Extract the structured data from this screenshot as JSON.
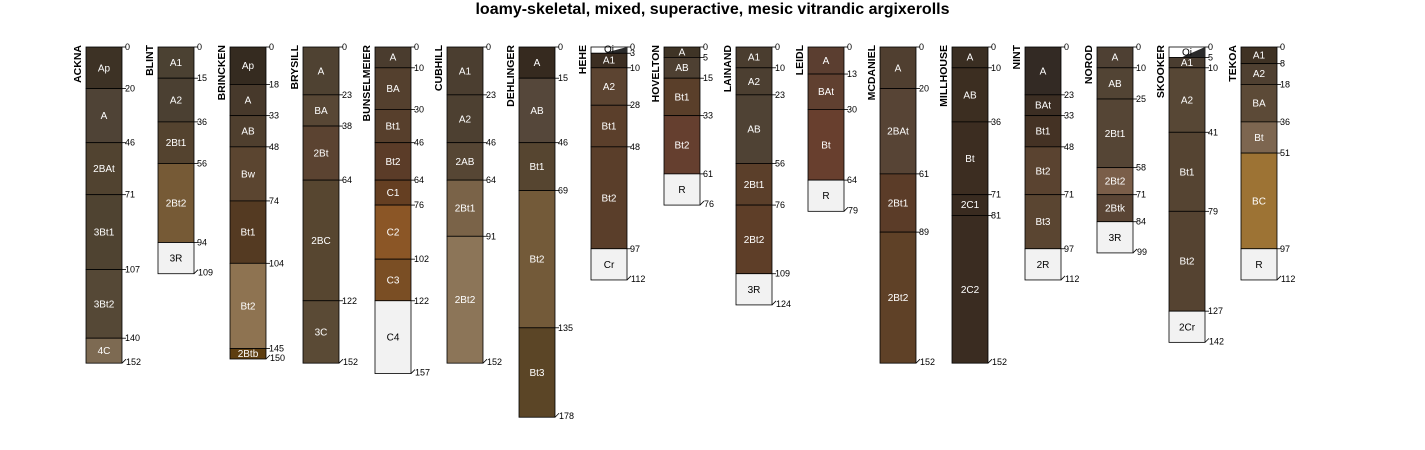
{
  "title": "loamy-skeletal, mixed, superactive, mesic vitrandic argixerolls",
  "chart_data": {
    "type": "soil-profile-sketch",
    "depth_unit": "cm",
    "depth_max": 178,
    "profiles": [
      {
        "name": "ACKNA",
        "horizons": [
          {
            "name": "Ap",
            "top": 0,
            "bottom": 20,
            "color": "#3D3225"
          },
          {
            "name": "A",
            "top": 20,
            "bottom": 46,
            "color": "#4F4336"
          },
          {
            "name": "2BAt",
            "top": 46,
            "bottom": 71,
            "color": "#514330"
          },
          {
            "name": "3Bt1",
            "top": 71,
            "bottom": 107,
            "color": "#4F4331"
          },
          {
            "name": "3Bt2",
            "top": 107,
            "bottom": 140,
            "color": "#554836"
          },
          {
            "name": "4C",
            "top": 140,
            "bottom": 152,
            "color": "#7D6A52"
          }
        ]
      },
      {
        "name": "BLINT",
        "horizons": [
          {
            "name": "A1",
            "top": 0,
            "bottom": 15,
            "color": "#4B4132"
          },
          {
            "name": "A2",
            "top": 15,
            "bottom": 36,
            "color": "#4B4032"
          },
          {
            "name": "2Bt1",
            "top": 36,
            "bottom": 56,
            "color": "#54432F"
          },
          {
            "name": "2Bt2",
            "top": 56,
            "bottom": 94,
            "color": "#765A36"
          },
          {
            "name": "3R",
            "top": 94,
            "bottom": 109,
            "color": "#F2F2F2"
          }
        ]
      },
      {
        "name": "BRINCKEN",
        "horizons": [
          {
            "name": "Ap",
            "top": 0,
            "bottom": 18,
            "color": "#352B20"
          },
          {
            "name": "A",
            "top": 18,
            "bottom": 33,
            "color": "#47392B"
          },
          {
            "name": "AB",
            "top": 33,
            "bottom": 48,
            "color": "#4F3F2E"
          },
          {
            "name": "Bw",
            "top": 48,
            "bottom": 74,
            "color": "#5B4530"
          },
          {
            "name": "Bt1",
            "top": 74,
            "bottom": 104,
            "color": "#543A22"
          },
          {
            "name": "Bt2",
            "top": 104,
            "bottom": 145,
            "color": "#8E7351"
          },
          {
            "name": "2Btb",
            "top": 145,
            "bottom": 150,
            "color": "#5E3E10"
          }
        ]
      },
      {
        "name": "BRYSILL",
        "horizons": [
          {
            "name": "A",
            "top": 0,
            "bottom": 23,
            "color": "#4F4232"
          },
          {
            "name": "BA",
            "top": 23,
            "bottom": 38,
            "color": "#584735"
          },
          {
            "name": "2Bt",
            "top": 38,
            "bottom": 64,
            "color": "#5B4331"
          },
          {
            "name": "2BC",
            "top": 64,
            "bottom": 122,
            "color": "#574630"
          },
          {
            "name": "3C",
            "top": 122,
            "bottom": 152,
            "color": "#5A4A35"
          }
        ]
      },
      {
        "name": "BUNSELMEIER",
        "horizons": [
          {
            "name": "A",
            "top": 0,
            "bottom": 10,
            "color": "#4A3C2E"
          },
          {
            "name": "BA",
            "top": 10,
            "bottom": 30,
            "color": "#54402E"
          },
          {
            "name": "Bt1",
            "top": 30,
            "bottom": 46,
            "color": "#573F2C"
          },
          {
            "name": "Bt2",
            "top": 46,
            "bottom": 64,
            "color": "#5B3C28"
          },
          {
            "name": "C1",
            "top": 64,
            "bottom": 76,
            "color": "#653F22"
          },
          {
            "name": "C2",
            "top": 76,
            "bottom": 102,
            "color": "#8B5626"
          },
          {
            "name": "C3",
            "top": 102,
            "bottom": 122,
            "color": "#7A4E24"
          },
          {
            "name": "C4",
            "top": 122,
            "bottom": 157,
            "color": "#F2F2F2"
          }
        ]
      },
      {
        "name": "CUBHILL",
        "horizons": [
          {
            "name": "A1",
            "top": 0,
            "bottom": 23,
            "color": "#4B3E30"
          },
          {
            "name": "A2",
            "top": 23,
            "bottom": 46,
            "color": "#4D4031"
          },
          {
            "name": "2AB",
            "top": 46,
            "bottom": 64,
            "color": "#564634"
          },
          {
            "name": "2Bt1",
            "top": 64,
            "bottom": 91,
            "color": "#7A6348"
          },
          {
            "name": "2Bt2",
            "top": 91,
            "bottom": 152,
            "color": "#8C7558"
          }
        ]
      },
      {
        "name": "DEHLINGER",
        "horizons": [
          {
            "name": "A",
            "top": 0,
            "bottom": 15,
            "color": "#362A1F"
          },
          {
            "name": "AB",
            "top": 15,
            "bottom": 46,
            "color": "#55473A"
          },
          {
            "name": "Bt1",
            "top": 46,
            "bottom": 69,
            "color": "#564530"
          },
          {
            "name": "Bt2",
            "top": 69,
            "bottom": 135,
            "color": "#735A39"
          },
          {
            "name": "Bt3",
            "top": 135,
            "bottom": 178,
            "color": "#5B4526"
          }
        ]
      },
      {
        "name": "HEHE",
        "horizons": [
          {
            "name": "Oi",
            "top": 0,
            "bottom": 3,
            "color": "#FFFFFF",
            "organic": true
          },
          {
            "name": "A1",
            "top": 3,
            "bottom": 10,
            "color": "#3C2E22"
          },
          {
            "name": "A2",
            "top": 10,
            "bottom": 28,
            "color": "#5C4431"
          },
          {
            "name": "Bt1",
            "top": 28,
            "bottom": 48,
            "color": "#5B3F2B"
          },
          {
            "name": "Bt2",
            "top": 48,
            "bottom": 97,
            "color": "#5A3E2A"
          },
          {
            "name": "Cr",
            "top": 97,
            "bottom": 112,
            "color": "#F2F2F2"
          }
        ]
      },
      {
        "name": "HOVELTON",
        "horizons": [
          {
            "name": "A",
            "top": 0,
            "bottom": 5,
            "color": "#3F3426"
          },
          {
            "name": "AB",
            "top": 5,
            "bottom": 15,
            "color": "#4E4032"
          },
          {
            "name": "Bt1",
            "top": 15,
            "bottom": 33,
            "color": "#5A3F2A"
          },
          {
            "name": "Bt2",
            "top": 33,
            "bottom": 61,
            "color": "#653F2F"
          },
          {
            "name": "R",
            "top": 61,
            "bottom": 76,
            "color": "#F2F2F2"
          }
        ]
      },
      {
        "name": "LAINAND",
        "horizons": [
          {
            "name": "A1",
            "top": 0,
            "bottom": 10,
            "color": "#4A3D2F"
          },
          {
            "name": "A2",
            "top": 10,
            "bottom": 23,
            "color": "#4C3F31"
          },
          {
            "name": "AB",
            "top": 23,
            "bottom": 56,
            "color": "#4F4234"
          },
          {
            "name": "2Bt1",
            "top": 56,
            "bottom": 76,
            "color": "#5B3F2A"
          },
          {
            "name": "2Bt2",
            "top": 76,
            "bottom": 109,
            "color": "#5E3E28"
          },
          {
            "name": "3R",
            "top": 109,
            "bottom": 124,
            "color": "#F2F2F2"
          }
        ]
      },
      {
        "name": "LEIDL",
        "horizons": [
          {
            "name": "A",
            "top": 0,
            "bottom": 13,
            "color": "#5B3E30"
          },
          {
            "name": "BAt",
            "top": 13,
            "bottom": 30,
            "color": "#604030"
          },
          {
            "name": "Bt",
            "top": 30,
            "bottom": 64,
            "color": "#683F2E"
          },
          {
            "name": "R",
            "top": 64,
            "bottom": 79,
            "color": "#F2F2F2"
          }
        ]
      },
      {
        "name": "MCDANIEL",
        "horizons": [
          {
            "name": "A",
            "top": 0,
            "bottom": 20,
            "color": "#503F30"
          },
          {
            "name": "2BAt",
            "top": 20,
            "bottom": 61,
            "color": "#574435"
          },
          {
            "name": "2Bt1",
            "top": 61,
            "bottom": 89,
            "color": "#5B3C28"
          },
          {
            "name": "2Bt2",
            "top": 89,
            "bottom": 152,
            "color": "#5F4127"
          }
        ]
      },
      {
        "name": "MILLHOUSE",
        "horizons": [
          {
            "name": "A",
            "top": 0,
            "bottom": 10,
            "color": "#3A2E22"
          },
          {
            "name": "AB",
            "top": 10,
            "bottom": 36,
            "color": "#3C2E21"
          },
          {
            "name": "Bt",
            "top": 36,
            "bottom": 71,
            "color": "#3C2D21"
          },
          {
            "name": "2C1",
            "top": 71,
            "bottom": 81,
            "color": "#392B20"
          },
          {
            "name": "2C2",
            "top": 81,
            "bottom": 152,
            "color": "#3A2C21"
          }
        ]
      },
      {
        "name": "NINT",
        "horizons": [
          {
            "name": "A",
            "top": 0,
            "bottom": 23,
            "color": "#332A24"
          },
          {
            "name": "BAt",
            "top": 23,
            "bottom": 33,
            "color": "#3C2E23"
          },
          {
            "name": "Bt1",
            "top": 33,
            "bottom": 48,
            "color": "#443224"
          },
          {
            "name": "Bt2",
            "top": 48,
            "bottom": 71,
            "color": "#5A4330"
          },
          {
            "name": "Bt3",
            "top": 71,
            "bottom": 97,
            "color": "#5A4531"
          },
          {
            "name": "2R",
            "top": 97,
            "bottom": 112,
            "color": "#F2F2F2"
          }
        ]
      },
      {
        "name": "NOROD",
        "horizons": [
          {
            "name": "A",
            "top": 0,
            "bottom": 10,
            "color": "#4E4033"
          },
          {
            "name": "AB",
            "top": 10,
            "bottom": 25,
            "color": "#524434"
          },
          {
            "name": "2Bt1",
            "top": 25,
            "bottom": 58,
            "color": "#554535"
          },
          {
            "name": "2Bt2",
            "top": 58,
            "bottom": 71,
            "color": "#7A5E49"
          },
          {
            "name": "2Btk",
            "top": 71,
            "bottom": 84,
            "color": "#5A4535"
          },
          {
            "name": "3R",
            "top": 84,
            "bottom": 99,
            "color": "#F2F2F2"
          }
        ]
      },
      {
        "name": "SKOOKER",
        "horizons": [
          {
            "name": "Oi",
            "top": 0,
            "bottom": 5,
            "color": "#FFFFFF",
            "organic": true
          },
          {
            "name": "A1",
            "top": 5,
            "bottom": 10,
            "color": "#4A3D30"
          },
          {
            "name": "A2",
            "top": 10,
            "bottom": 41,
            "color": "#574735"
          },
          {
            "name": "Bt1",
            "top": 41,
            "bottom": 79,
            "color": "#554432"
          },
          {
            "name": "Bt2",
            "top": 79,
            "bottom": 127,
            "color": "#554331"
          },
          {
            "name": "2Cr",
            "top": 127,
            "bottom": 142,
            "color": "#F2F2F2"
          }
        ]
      },
      {
        "name": "TEKOA",
        "horizons": [
          {
            "name": "A1",
            "top": 0,
            "bottom": 8,
            "color": "#3F3224"
          },
          {
            "name": "A2",
            "top": 8,
            "bottom": 18,
            "color": "#4F4031"
          },
          {
            "name": "BA",
            "top": 18,
            "bottom": 36,
            "color": "#5C4A37"
          },
          {
            "name": "Bt",
            "top": 36,
            "bottom": 51,
            "color": "#7D6650"
          },
          {
            "name": "BC",
            "top": 51,
            "bottom": 97,
            "color": "#9D7334"
          },
          {
            "name": "R",
            "top": 97,
            "bottom": 112,
            "color": "#F2F2F2"
          }
        ]
      }
    ]
  }
}
